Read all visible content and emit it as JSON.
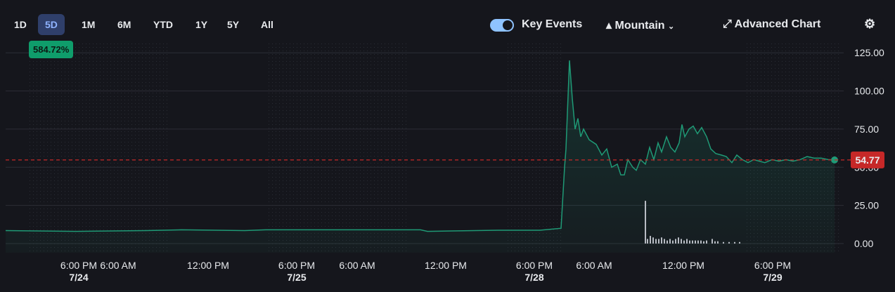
{
  "toolbar": {
    "ranges": [
      "1D",
      "5D",
      "1M",
      "6M",
      "YTD",
      "1Y",
      "5Y",
      "All"
    ],
    "active_range": 1,
    "change_badge": "584.72%",
    "key_events": "Key Events",
    "chart_style": "Mountain",
    "advanced_chart": "Advanced Chart"
  },
  "chart_data": {
    "type": "line",
    "series": [
      {
        "color": "#1f9a76",
        "x": [
          0,
          100,
          200,
          250,
          340,
          370,
          500,
          590,
          600,
          700,
          760,
          790,
          795,
          797,
          802,
          806,
          810,
          814,
          818,
          822,
          830,
          840,
          848,
          855,
          862,
          870,
          875,
          880,
          885,
          892,
          897,
          903,
          910,
          916,
          922,
          928,
          933,
          940,
          946,
          952,
          958,
          962,
          966,
          972,
          978,
          984,
          990,
          997,
          1003,
          1010,
          1018,
          1025,
          1033,
          1040,
          1048,
          1056,
          1064,
          1072,
          1080,
          1090,
          1100,
          1110,
          1120,
          1130,
          1140,
          1150,
          1160,
          1170,
          1179
        ],
        "values": [
          8.5,
          8,
          8.5,
          9,
          8.5,
          9,
          9,
          9,
          8,
          8.7,
          8.7,
          10,
          50,
          62,
          120,
          95,
          75,
          82,
          70,
          75,
          68,
          65,
          58,
          62,
          50,
          52,
          45,
          45,
          55,
          50,
          48,
          55,
          52,
          63,
          55,
          66,
          60,
          70,
          63,
          60,
          66,
          78,
          70,
          75,
          77,
          72,
          76,
          70,
          62,
          59,
          58,
          57,
          53,
          58,
          55,
          53,
          55,
          54,
          53,
          55,
          54,
          55,
          54,
          55,
          57,
          56,
          56,
          55,
          54.77
        ]
      }
    ],
    "volume": {
      "color": "#b8bcc4",
      "x": [
        910,
        913,
        917,
        921,
        925,
        929,
        933,
        937,
        941,
        945,
        949,
        953,
        957,
        961,
        965,
        969,
        973,
        977,
        981,
        985,
        989,
        993,
        997,
        1005,
        1009,
        1013,
        1021,
        1029,
        1037,
        1044
      ],
      "values": [
        28,
        3,
        5,
        4,
        3,
        3,
        4,
        3,
        2,
        3,
        2,
        3,
        4,
        3,
        2,
        3,
        2,
        2,
        2,
        2,
        2,
        1.5,
        2,
        3,
        1.5,
        1.5,
        1,
        1,
        1,
        1
      ]
    },
    "reference_line": {
      "value": 54.77,
      "label": "54.77",
      "color": "#c62828"
    },
    "xlim": [
      0,
      1180
    ],
    "ylim": [
      -6,
      132
    ],
    "yticks": [
      {
        "value": 0,
        "label": "0.00"
      },
      {
        "value": 25,
        "label": "25.00"
      },
      {
        "value": 50,
        "label": "50.00"
      },
      {
        "value": 75,
        "label": "75.00"
      },
      {
        "value": 100,
        "label": "100.00"
      },
      {
        "value": 125,
        "label": "125.00"
      }
    ],
    "xticks": [
      {
        "value": 104,
        "label": "6:00 PM"
      },
      {
        "value": 160,
        "label": "6:00 AM"
      },
      {
        "value": 288,
        "label": "12:00 PM"
      },
      {
        "value": 414,
        "label": "6:00 PM"
      },
      {
        "value": 500,
        "label": "6:00 AM"
      },
      {
        "value": 626,
        "label": "12:00 PM"
      },
      {
        "value": 752,
        "label": "6:00 PM"
      },
      {
        "value": 837,
        "label": "6:00 AM"
      },
      {
        "value": 964,
        "label": "12:00 PM"
      },
      {
        "value": 1091,
        "label": "6:00 PM"
      }
    ],
    "date_labels": [
      {
        "value": 104,
        "label": "7/24"
      },
      {
        "value": 414,
        "label": "7/25"
      },
      {
        "value": 752,
        "label": "7/28"
      },
      {
        "value": 1091,
        "label": "7/29"
      }
    ],
    "grid": true
  }
}
